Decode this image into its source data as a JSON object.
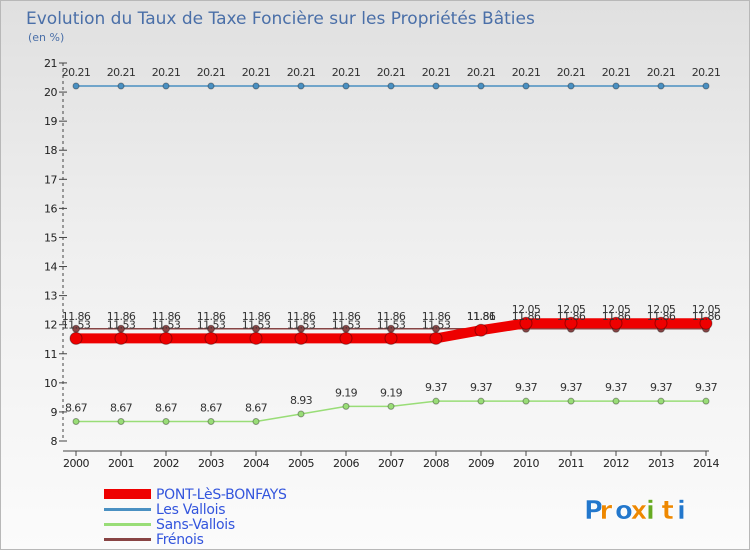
{
  "chart_data": {
    "type": "line",
    "title": "Evolution du Taux de Taxe Foncière sur les Propriétés Bâties",
    "subtitle": "(en %)",
    "xlabel": "",
    "ylabel": "(en %)",
    "ylim": [
      8,
      21
    ],
    "yticks": [
      "8",
      "9",
      "10",
      "11",
      "12",
      "13",
      "14",
      "15",
      "16",
      "17",
      "18",
      "19",
      "20",
      "21"
    ],
    "categories": [
      "2000",
      "2001",
      "2002",
      "2003",
      "2004",
      "2005",
      "2006",
      "2007",
      "2008",
      "2009",
      "2010",
      "2011",
      "2012",
      "2013",
      "2014"
    ],
    "series": [
      {
        "name": "Les Vallois",
        "color": "#4a90c2",
        "values": [
          20.21,
          20.21,
          20.21,
          20.21,
          20.21,
          20.21,
          20.21,
          20.21,
          20.21,
          20.21,
          20.21,
          20.21,
          20.21,
          20.21,
          20.21
        ],
        "labels": [
          "20.21",
          "20.21",
          "20.21",
          "20.21",
          "20.21",
          "20.21",
          "20.21",
          "20.21",
          "20.21",
          "20.21",
          "20.21",
          "20.21",
          "20.21",
          "20.21",
          "20.21"
        ]
      },
      {
        "name": "Sans-Vallois",
        "color": "#99dd77",
        "values": [
          8.67,
          8.67,
          8.67,
          8.67,
          8.67,
          8.93,
          9.19,
          9.19,
          9.37,
          9.37,
          9.37,
          9.37,
          9.37,
          9.37,
          9.37
        ],
        "labels": [
          "8.67",
          "8.67",
          "8.67",
          "8.67",
          "8.67",
          "8.93",
          "9.19",
          "9.19",
          "9.37",
          "9.37",
          "9.37",
          "9.37",
          "9.37",
          "9.37",
          "9.37"
        ]
      },
      {
        "name": "Frénois",
        "color": "#884444",
        "values": [
          11.86,
          11.86,
          11.86,
          11.86,
          11.86,
          11.86,
          11.86,
          11.86,
          11.86,
          11.86,
          11.86,
          11.86,
          11.86,
          11.86,
          11.86
        ],
        "labels": [
          "11.86",
          "11.86",
          "11.86",
          "11.86",
          "11.86",
          "11.86",
          "11.86",
          "11.86",
          "11.86",
          "11.86",
          "11.86",
          "11.86",
          "11.86",
          "11.86",
          "11.86"
        ]
      },
      {
        "name": "PONT-LèS-BONFAYS",
        "color": "#ee0000",
        "values": [
          11.53,
          11.53,
          11.53,
          11.53,
          11.53,
          11.53,
          11.53,
          11.53,
          11.53,
          11.81,
          12.05,
          12.05,
          12.05,
          12.05,
          12.05
        ],
        "labels": [
          "11.53",
          "11.53",
          "11.53",
          "11.53",
          "11.53",
          "11.53",
          "11.53",
          "11.53",
          "11.53",
          "11.81",
          "12.05",
          "12.05",
          "12.05",
          "12.05",
          "12.05"
        ]
      }
    ],
    "legend": [
      "PONT-LèS-BONFAYS",
      "Les Vallois",
      "Sans-Vallois",
      "Frénois"
    ],
    "legend_position": "bottom-left",
    "grid": false
  },
  "colors": {
    "title": "#4a6fa8",
    "legend_text": "#3355dd",
    "axis": "#444444"
  },
  "branding": {
    "logo_text": "Proxiti",
    "letters": [
      "P",
      "r",
      "o",
      "x",
      "i",
      "t",
      "i"
    ],
    "letter_colors": [
      "#2277cc",
      "#ee8800",
      "#2277cc",
      "#ee8800",
      "#66aa22",
      "#ee8800",
      "#2277cc"
    ]
  }
}
